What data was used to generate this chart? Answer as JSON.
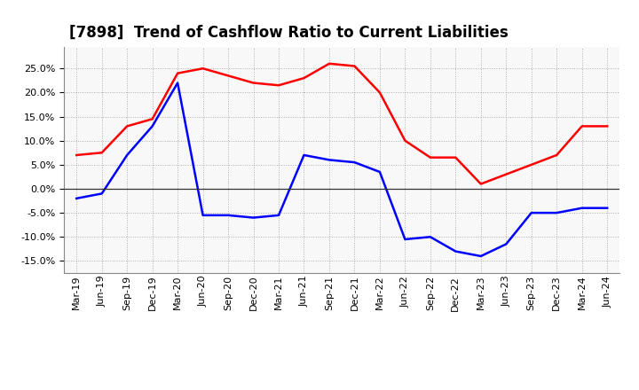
{
  "title": "[7898]  Trend of Cashflow Ratio to Current Liabilities",
  "x_labels": [
    "Mar-19",
    "Jun-19",
    "Sep-19",
    "Dec-19",
    "Mar-20",
    "Jun-20",
    "Sep-20",
    "Dec-20",
    "Mar-21",
    "Jun-21",
    "Sep-21",
    "Dec-21",
    "Mar-22",
    "Jun-22",
    "Sep-22",
    "Dec-22",
    "Mar-23",
    "Jun-23",
    "Sep-23",
    "Dec-23",
    "Mar-24",
    "Jun-24"
  ],
  "operating_cf": [
    0.07,
    0.075,
    0.13,
    0.145,
    0.24,
    0.25,
    0.235,
    0.22,
    0.215,
    0.23,
    0.26,
    0.255,
    0.2,
    0.1,
    0.065,
    0.065,
    0.01,
    0.03,
    0.05,
    0.07,
    0.13,
    0.13
  ],
  "free_cf": [
    -0.02,
    -0.01,
    0.07,
    0.13,
    0.22,
    -0.055,
    -0.055,
    -0.06,
    -0.055,
    0.07,
    0.06,
    0.055,
    0.035,
    -0.105,
    -0.1,
    -0.13,
    -0.14,
    -0.115,
    -0.05,
    -0.05,
    -0.04,
    -0.04
  ],
  "operating_color": "#ff0000",
  "free_color": "#0000ff",
  "ylim": [
    -0.175,
    0.295
  ],
  "yticks": [
    -0.15,
    -0.1,
    -0.05,
    0.0,
    0.05,
    0.1,
    0.15,
    0.2,
    0.25
  ],
  "background_color": "#ffffff",
  "grid_color": "#999999",
  "title_fontsize": 12,
  "legend_fontsize": 9.5,
  "tick_fontsize": 8
}
